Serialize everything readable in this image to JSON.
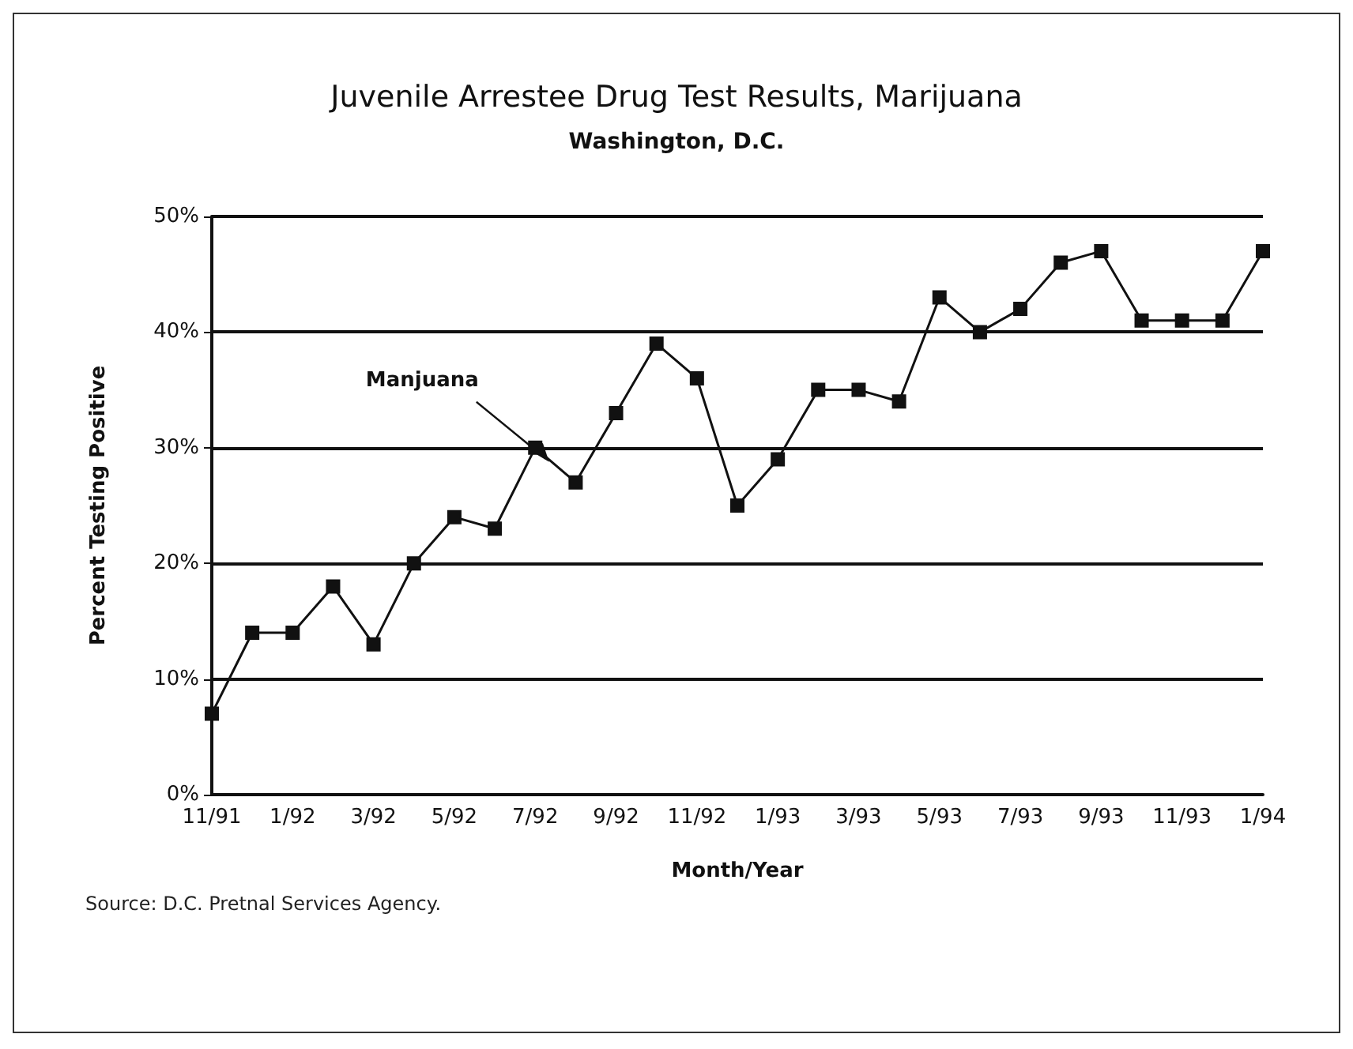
{
  "chart_data": {
    "type": "line",
    "title": "Juvenile Arrestee Drug Test Results, Marijuana",
    "subtitle": "Washington, D.C.",
    "xlabel": "Month/Year",
    "ylabel": "Percent Testing Positive",
    "categories": [
      "11/91",
      null,
      "1/92",
      null,
      "3/92",
      null,
      "5/92",
      null,
      "7/92",
      null,
      "9/92",
      null,
      "11/92",
      null,
      "1/93",
      null,
      "3/93",
      null,
      "5/93",
      null,
      "7/93",
      null,
      "9/93",
      null,
      "11/93",
      null,
      "1/94"
    ],
    "series": [
      {
        "name": "Manjuana",
        "color": "#111111",
        "values": [
          7,
          14,
          14,
          18,
          13,
          20,
          24,
          23,
          30,
          27,
          33,
          39,
          36,
          25,
          29,
          35,
          35,
          34,
          43,
          40,
          42,
          46,
          47,
          41,
          41,
          41,
          47
        ]
      }
    ],
    "ylim": [
      0,
      50
    ],
    "yticks": [
      {
        "value": 0,
        "label": "0%"
      },
      {
        "value": 10,
        "label": "10%"
      },
      {
        "value": 20,
        "label": "20%"
      },
      {
        "value": 30,
        "label": "30%"
      },
      {
        "value": 40,
        "label": "40%"
      },
      {
        "value": 50,
        "label": "50%"
      }
    ],
    "grid": "y",
    "marker": "square",
    "line_style": "solid",
    "legend": false,
    "annotations": [
      "Source: D.C. Pretnal Services Agency."
    ]
  }
}
